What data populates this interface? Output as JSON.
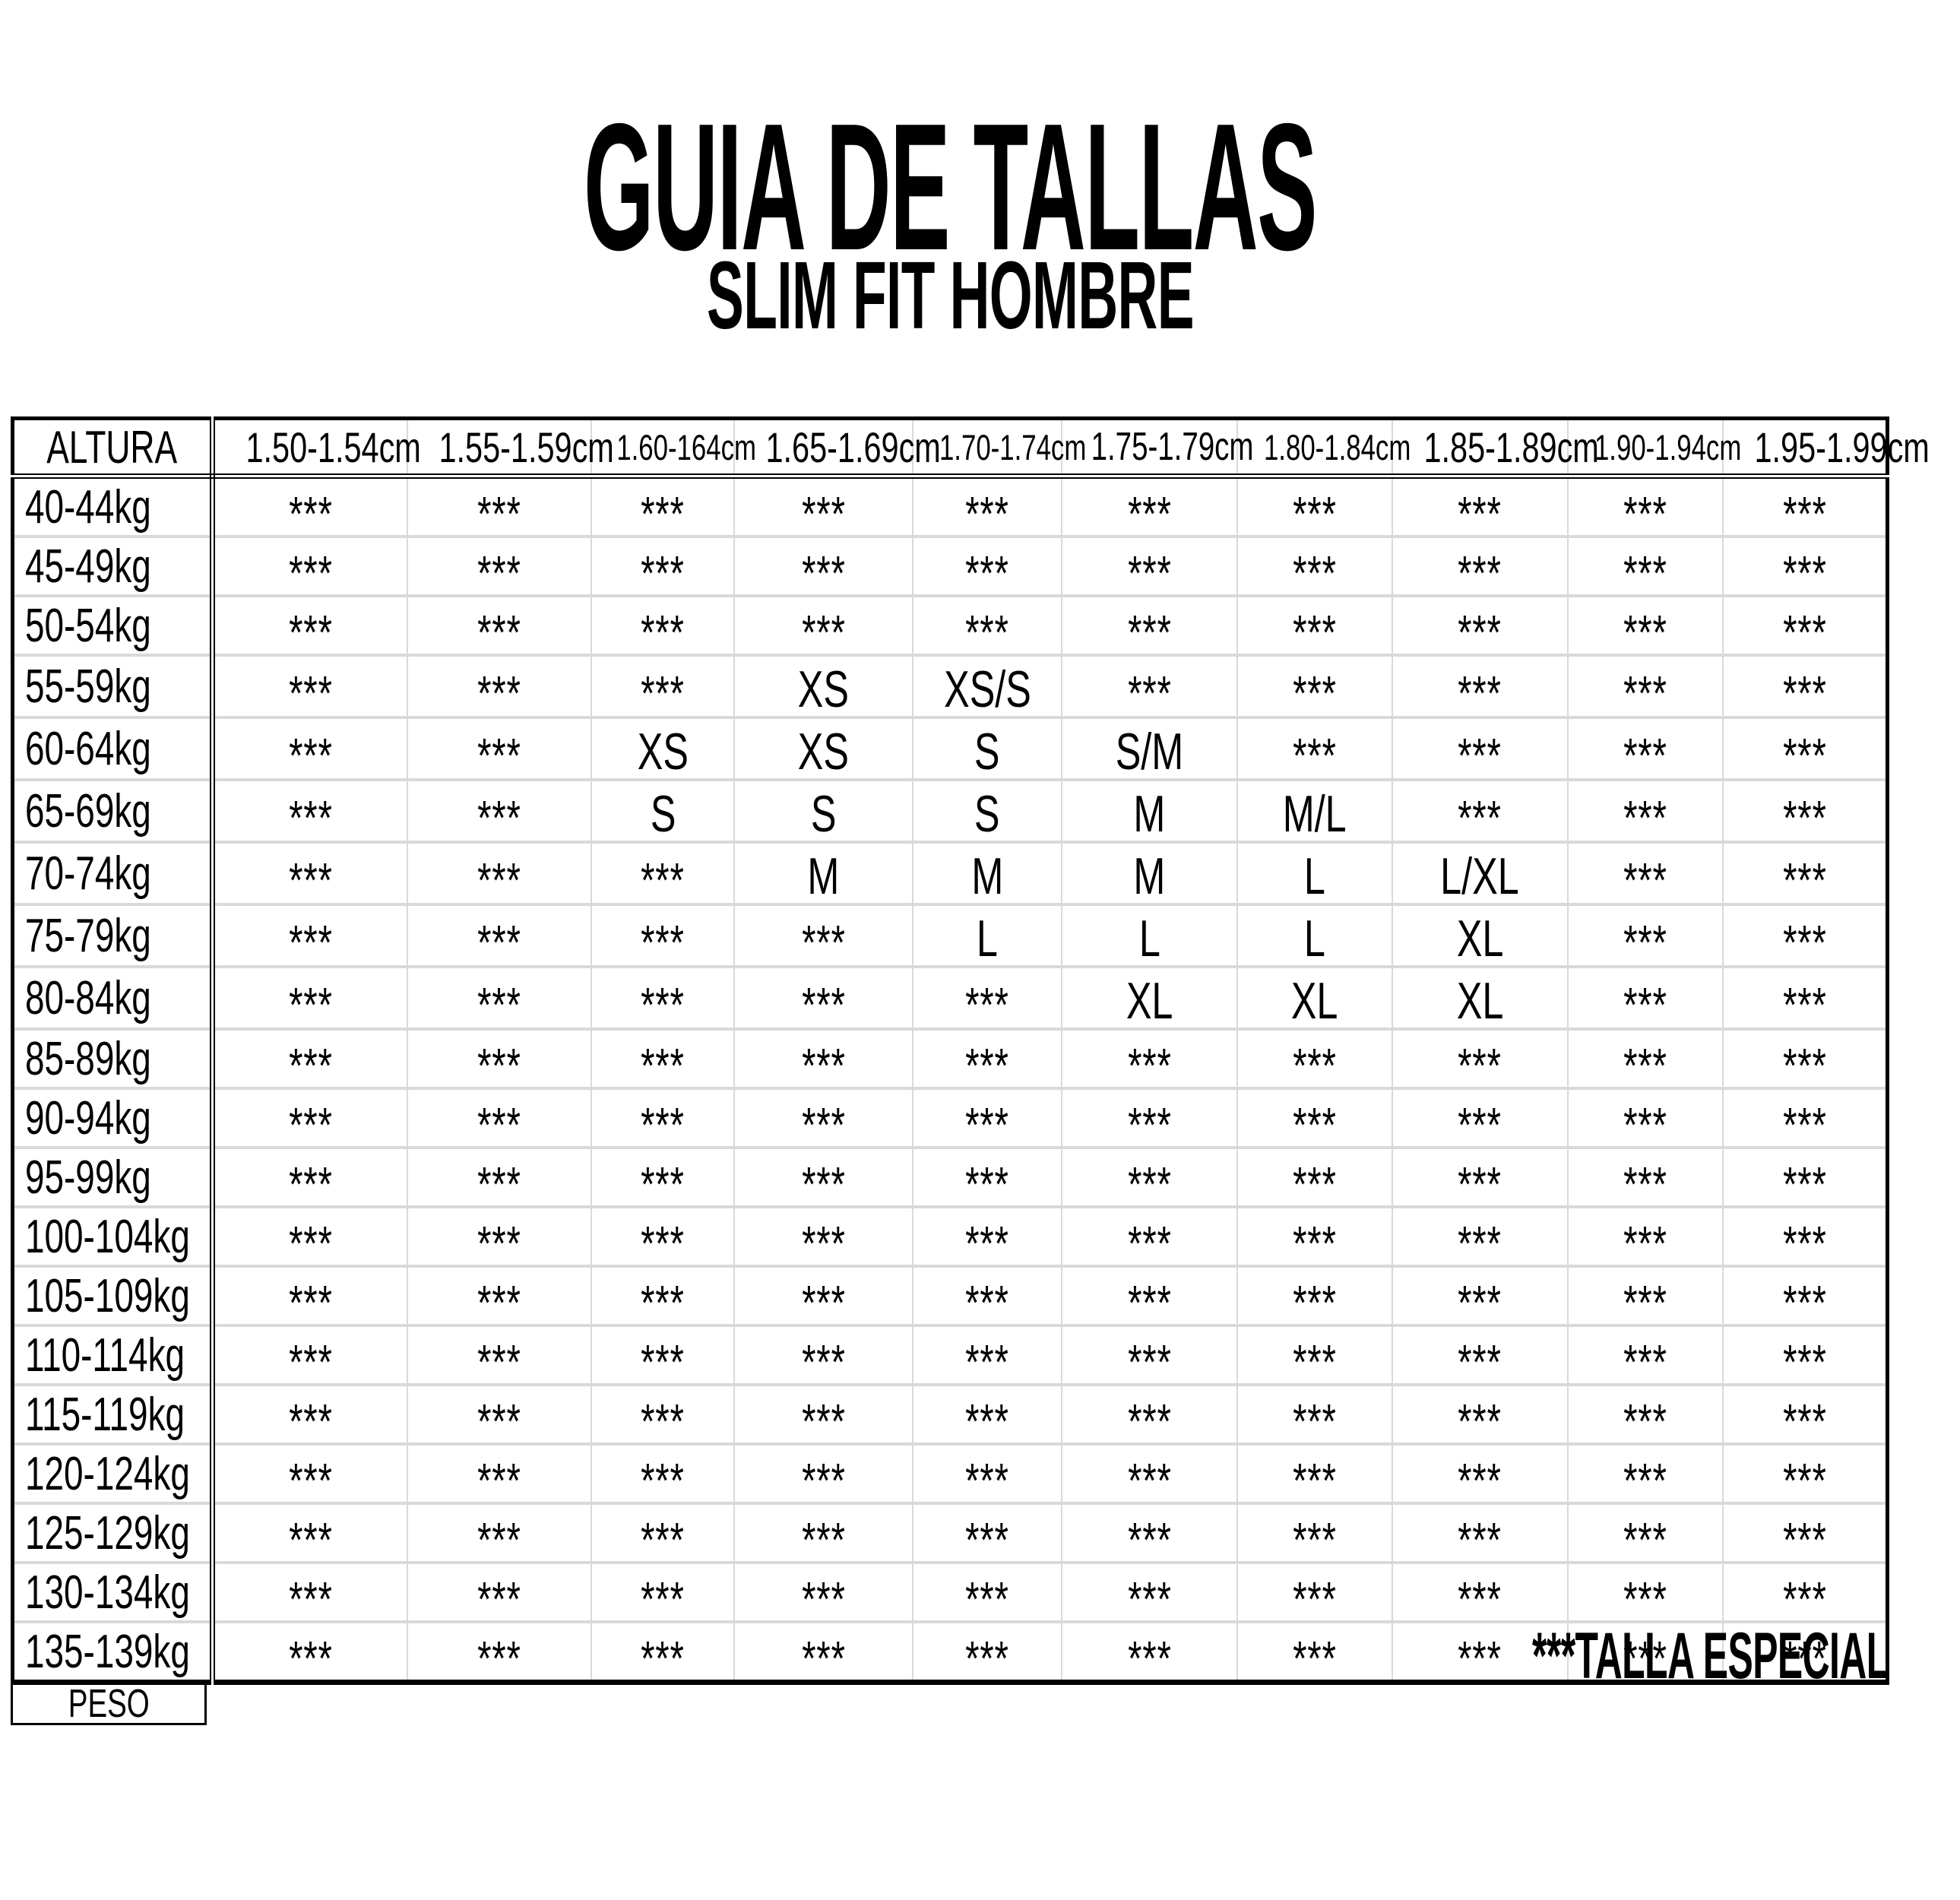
{
  "page": {
    "title": "GUIA DE TALLAS",
    "subtitle": "SLIM FIT HOMBRE",
    "footnote": "***TALLA ESPECIAL"
  },
  "colors": {
    "background": "#ffffff",
    "text": "#000000",
    "table_border": "#000000",
    "grid_line": "#d9d9d9"
  },
  "table": {
    "corner_header": "ALTURA",
    "peso_label": "PESO",
    "special_marker": "***",
    "height_columns": [
      "1.50-1.54cm",
      "1.55-1.59cm",
      "1.60-164cm",
      "1.65-1.69cm",
      "1.70-1.74cm",
      "1.75-1.79cm",
      "1.80-1.84cm",
      "1.85-1.89cm",
      "1.90-1.94cm",
      "1.95-1.99cm"
    ],
    "weight_rows": [
      {
        "label": "40-44kg",
        "cells": [
          "***",
          "***",
          "***",
          "***",
          "***",
          "***",
          "***",
          "***",
          "***",
          "***"
        ]
      },
      {
        "label": "45-49kg",
        "cells": [
          "***",
          "***",
          "***",
          "***",
          "***",
          "***",
          "***",
          "***",
          "***",
          "***"
        ]
      },
      {
        "label": "50-54kg",
        "cells": [
          "***",
          "***",
          "***",
          "***",
          "***",
          "***",
          "***",
          "***",
          "***",
          "***"
        ]
      },
      {
        "label": "55-59kg",
        "cells": [
          "***",
          "***",
          "***",
          "XS",
          "XS/S",
          "***",
          "***",
          "***",
          "***",
          "***"
        ]
      },
      {
        "label": "60-64kg",
        "cells": [
          "***",
          "***",
          "XS",
          "XS",
          "S",
          "S/M",
          "***",
          "***",
          "***",
          "***"
        ]
      },
      {
        "label": "65-69kg",
        "cells": [
          "***",
          "***",
          "S",
          "S",
          "S",
          "M",
          "M/L",
          "***",
          "***",
          "***"
        ]
      },
      {
        "label": "70-74kg",
        "cells": [
          "***",
          "***",
          "***",
          "M",
          "M",
          "M",
          "L",
          "L/XL",
          "***",
          "***"
        ]
      },
      {
        "label": "75-79kg",
        "cells": [
          "***",
          "***",
          "***",
          "***",
          "L",
          "L",
          "L",
          "XL",
          "***",
          "***"
        ]
      },
      {
        "label": "80-84kg",
        "cells": [
          "***",
          "***",
          "***",
          "***",
          "***",
          "XL",
          "XL",
          "XL",
          "***",
          "***"
        ]
      },
      {
        "label": "85-89kg",
        "cells": [
          "***",
          "***",
          "***",
          "***",
          "***",
          "***",
          "***",
          "***",
          "***",
          "***"
        ]
      },
      {
        "label": "90-94kg",
        "cells": [
          "***",
          "***",
          "***",
          "***",
          "***",
          "***",
          "***",
          "***",
          "***",
          "***"
        ]
      },
      {
        "label": "95-99kg",
        "cells": [
          "***",
          "***",
          "***",
          "***",
          "***",
          "***",
          "***",
          "***",
          "***",
          "***"
        ]
      },
      {
        "label": "100-104kg",
        "cells": [
          "***",
          "***",
          "***",
          "***",
          "***",
          "***",
          "***",
          "***",
          "***",
          "***"
        ]
      },
      {
        "label": "105-109kg",
        "cells": [
          "***",
          "***",
          "***",
          "***",
          "***",
          "***",
          "***",
          "***",
          "***",
          "***"
        ]
      },
      {
        "label": "110-114kg",
        "cells": [
          "***",
          "***",
          "***",
          "***",
          "***",
          "***",
          "***",
          "***",
          "***",
          "***"
        ]
      },
      {
        "label": "115-119kg",
        "cells": [
          "***",
          "***",
          "***",
          "***",
          "***",
          "***",
          "***",
          "***",
          "***",
          "***"
        ]
      },
      {
        "label": "120-124kg",
        "cells": [
          "***",
          "***",
          "***",
          "***",
          "***",
          "***",
          "***",
          "***",
          "***",
          "***"
        ]
      },
      {
        "label": "125-129kg",
        "cells": [
          "***",
          "***",
          "***",
          "***",
          "***",
          "***",
          "***",
          "***",
          "***",
          "***"
        ]
      },
      {
        "label": "130-134kg",
        "cells": [
          "***",
          "***",
          "***",
          "***",
          "***",
          "***",
          "***",
          "***",
          "***",
          "***"
        ]
      },
      {
        "label": "135-139kg",
        "cells": [
          "***",
          "***",
          "***",
          "***",
          "***",
          "***",
          "***",
          "***",
          "***",
          "***"
        ]
      }
    ]
  }
}
